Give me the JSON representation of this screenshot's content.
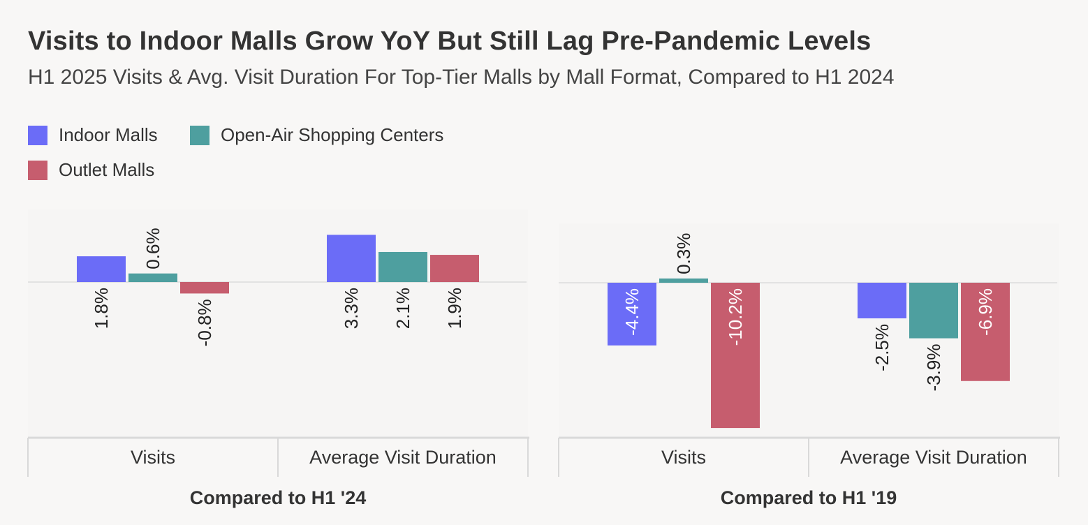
{
  "header": {
    "title": "Visits to Indoor Malls Grow YoY But Still Lag Pre-Pandemic Levels",
    "subtitle": "H1 2025 Visits & Avg. Visit Duration For Top-Tier Malls by Mall Format, Compared to H1 2024"
  },
  "legend": [
    {
      "label": "Indoor Malls",
      "color": "#6b6cf7"
    },
    {
      "label": "Open-Air Shopping Centers",
      "color": "#4e9f9f"
    },
    {
      "label": "Outlet Malls",
      "color": "#c65d6e"
    }
  ],
  "chart_data": [
    {
      "type": "bar",
      "group_label": "Compared to H1 '24",
      "categories": [
        "Visits",
        "Average Visit Duration"
      ],
      "series": [
        {
          "name": "Indoor Malls",
          "values": [
            1.8,
            3.3
          ],
          "labels": [
            "1.8%",
            "3.3%"
          ]
        },
        {
          "name": "Open-Air Shopping Centers",
          "values": [
            0.6,
            2.1
          ],
          "labels": [
            "0.6%",
            "2.1%"
          ]
        },
        {
          "name": "Outlet Malls",
          "values": [
            -0.8,
            1.9
          ],
          "labels": [
            "-0.8%",
            "1.9%"
          ]
        }
      ],
      "unit": "%"
    },
    {
      "type": "bar",
      "group_label": "Compared to H1 '19",
      "categories": [
        "Visits",
        "Average Visit Duration"
      ],
      "series": [
        {
          "name": "Indoor Malls",
          "values": [
            -4.4,
            -2.5
          ],
          "labels": [
            "-4.4%",
            "-2.5%"
          ]
        },
        {
          "name": "Open-Air Shopping Centers",
          "values": [
            0.3,
            -3.9
          ],
          "labels": [
            "0.3%",
            "-3.9%"
          ]
        },
        {
          "name": "Outlet Malls",
          "values": [
            -10.2,
            -6.9
          ],
          "labels": [
            "-10.2%",
            "-6.9%"
          ]
        }
      ],
      "unit": "%"
    }
  ]
}
